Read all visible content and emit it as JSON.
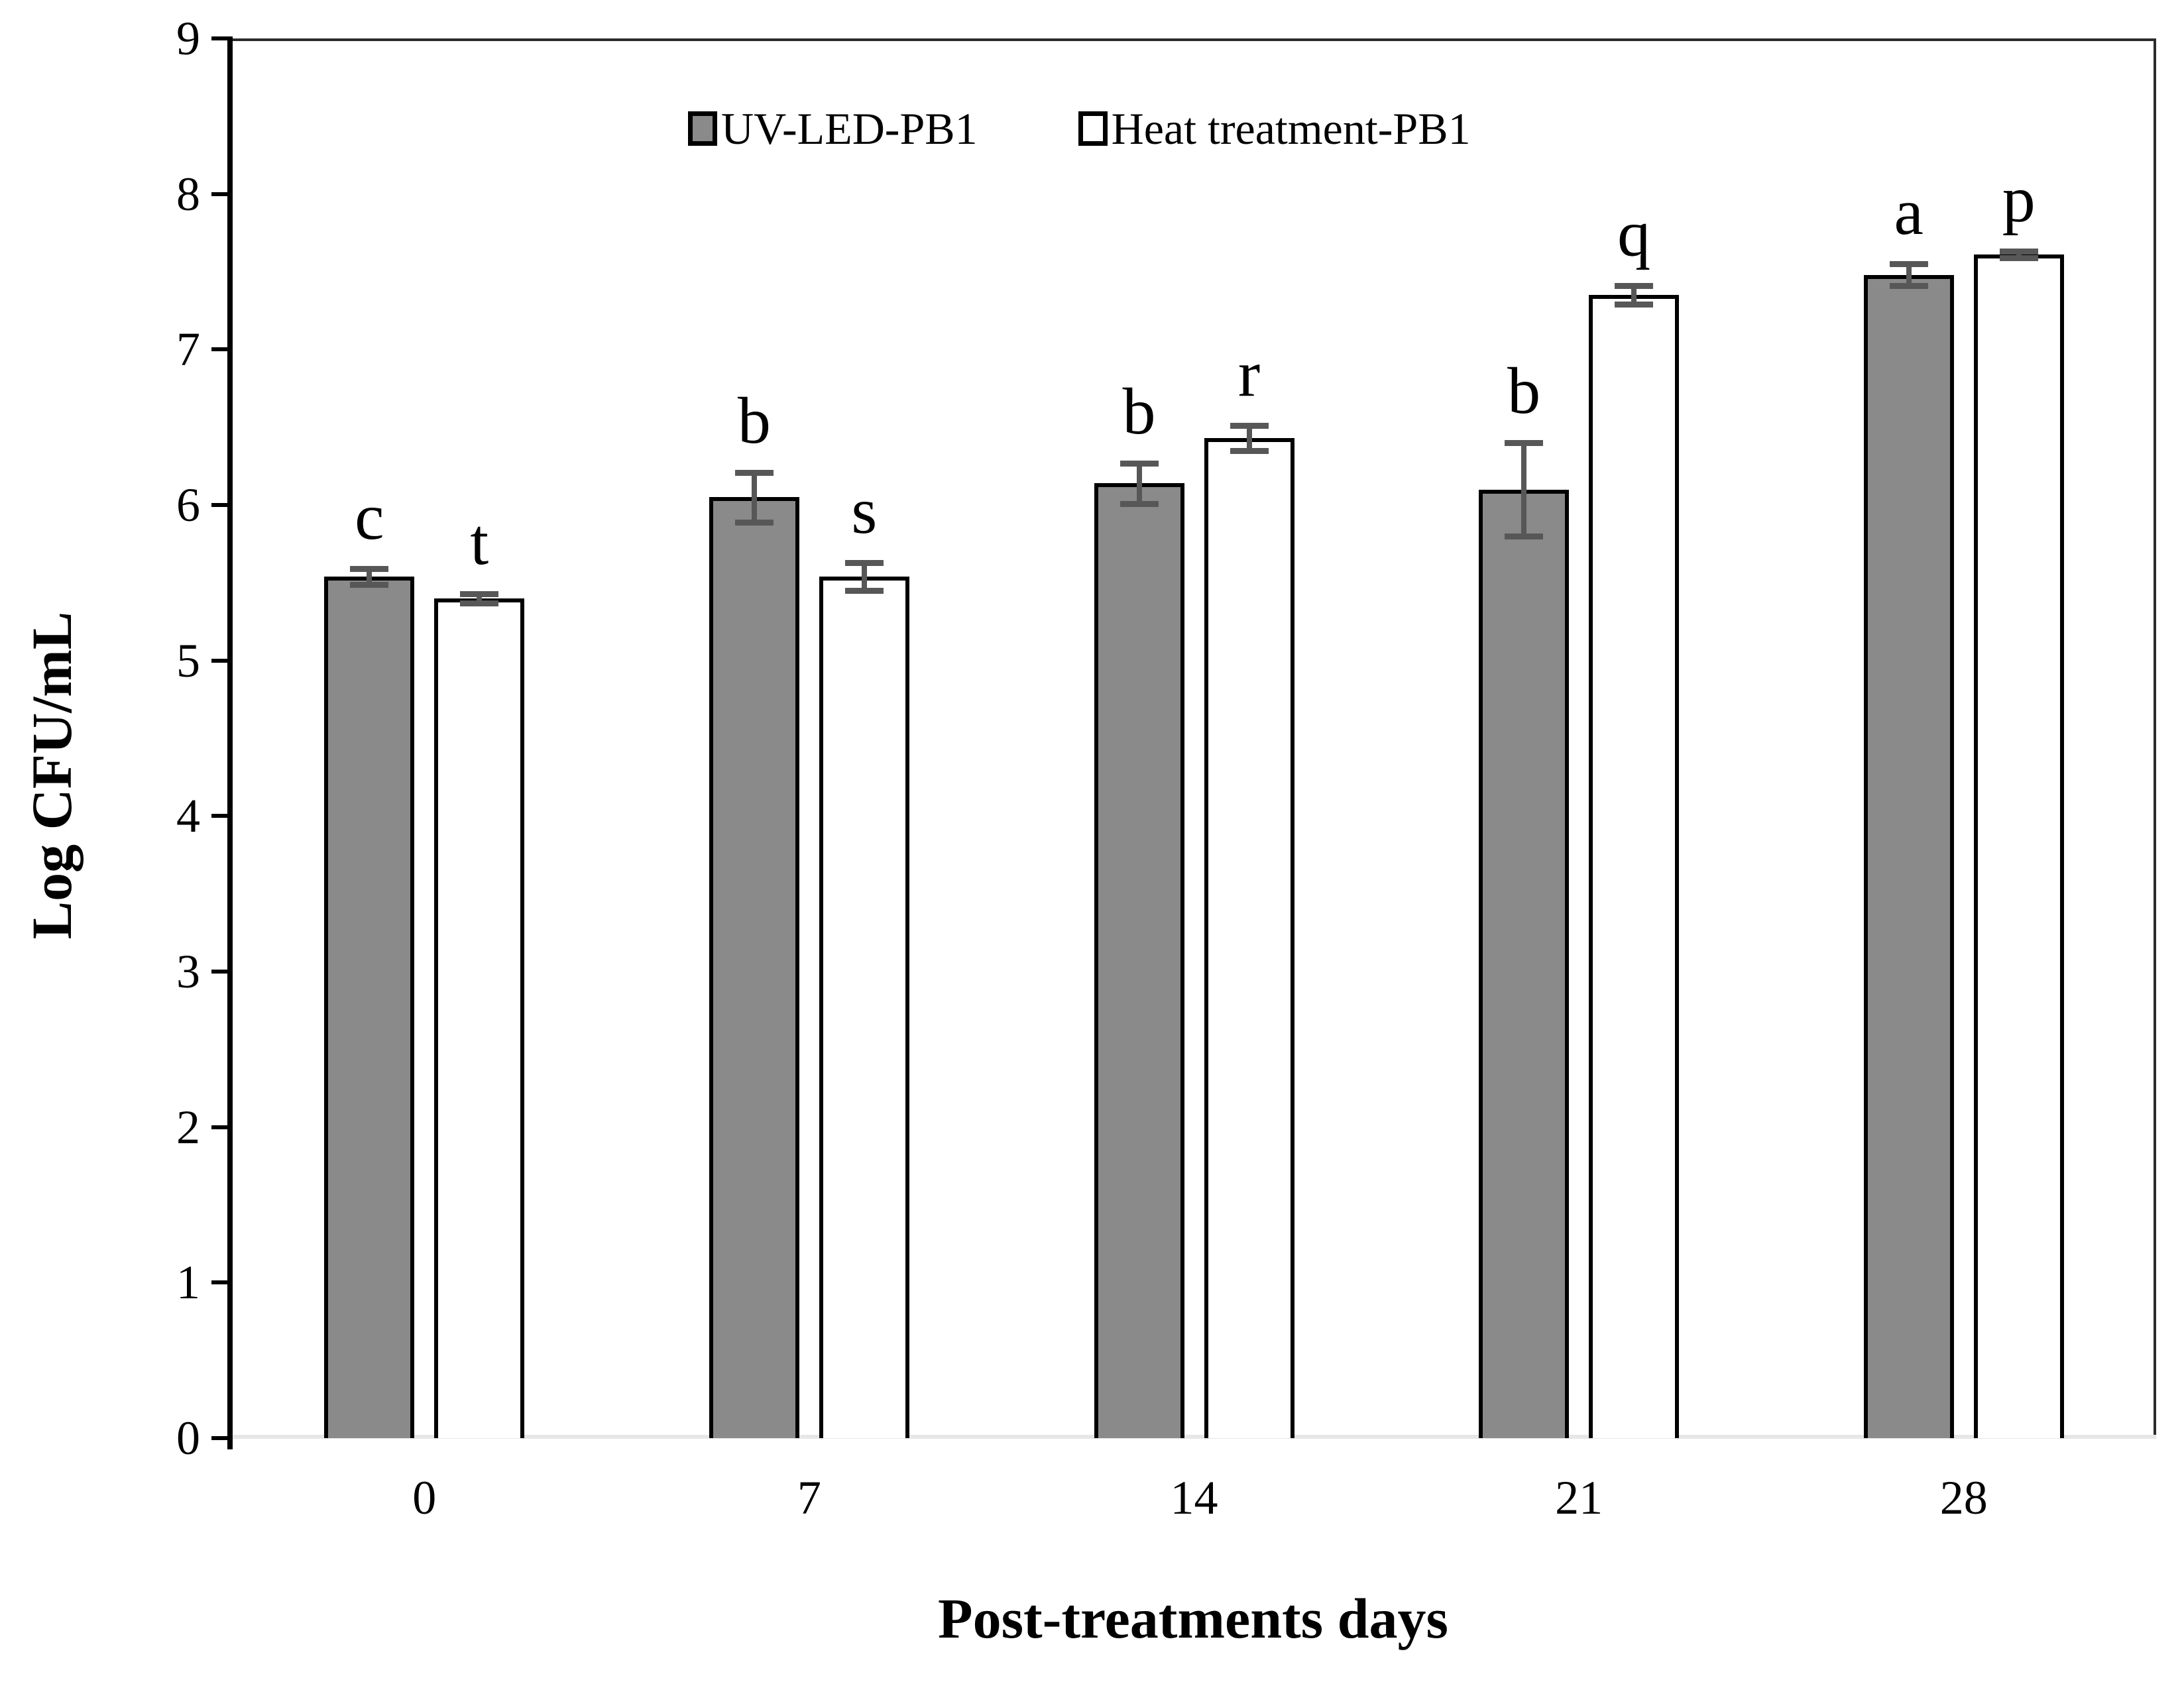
{
  "chart_data": {
    "type": "bar",
    "title": "",
    "xlabel": "Post-treatments days",
    "ylabel": "Log CFU/mL",
    "categories": [
      "0",
      "7",
      "14",
      "21",
      "28"
    ],
    "series": [
      {
        "name": "UV-LED-PB1",
        "fill": "#8a8a8a",
        "values": [
          5.54,
          6.05,
          6.14,
          6.1,
          7.48
        ],
        "errors": [
          0.05,
          0.16,
          0.13,
          0.3,
          0.07
        ],
        "letters": [
          "c",
          "b",
          "b",
          "b",
          "a"
        ]
      },
      {
        "name": "Heat treatment-PB1",
        "fill": "#ffffff",
        "values": [
          5.4,
          5.54,
          6.43,
          7.35,
          7.61
        ],
        "errors": [
          0.03,
          0.09,
          0.08,
          0.06,
          0.02
        ],
        "letters": [
          "t",
          "s",
          "r",
          "q",
          "p"
        ]
      }
    ],
    "ylim": [
      0,
      9
    ],
    "yticks": [
      0,
      1,
      2,
      3,
      4,
      5,
      6,
      7,
      8,
      9
    ],
    "grid": false,
    "legend_position": "top-center",
    "error_bar_color": "#575757",
    "bar_outline_color": "#000000"
  }
}
